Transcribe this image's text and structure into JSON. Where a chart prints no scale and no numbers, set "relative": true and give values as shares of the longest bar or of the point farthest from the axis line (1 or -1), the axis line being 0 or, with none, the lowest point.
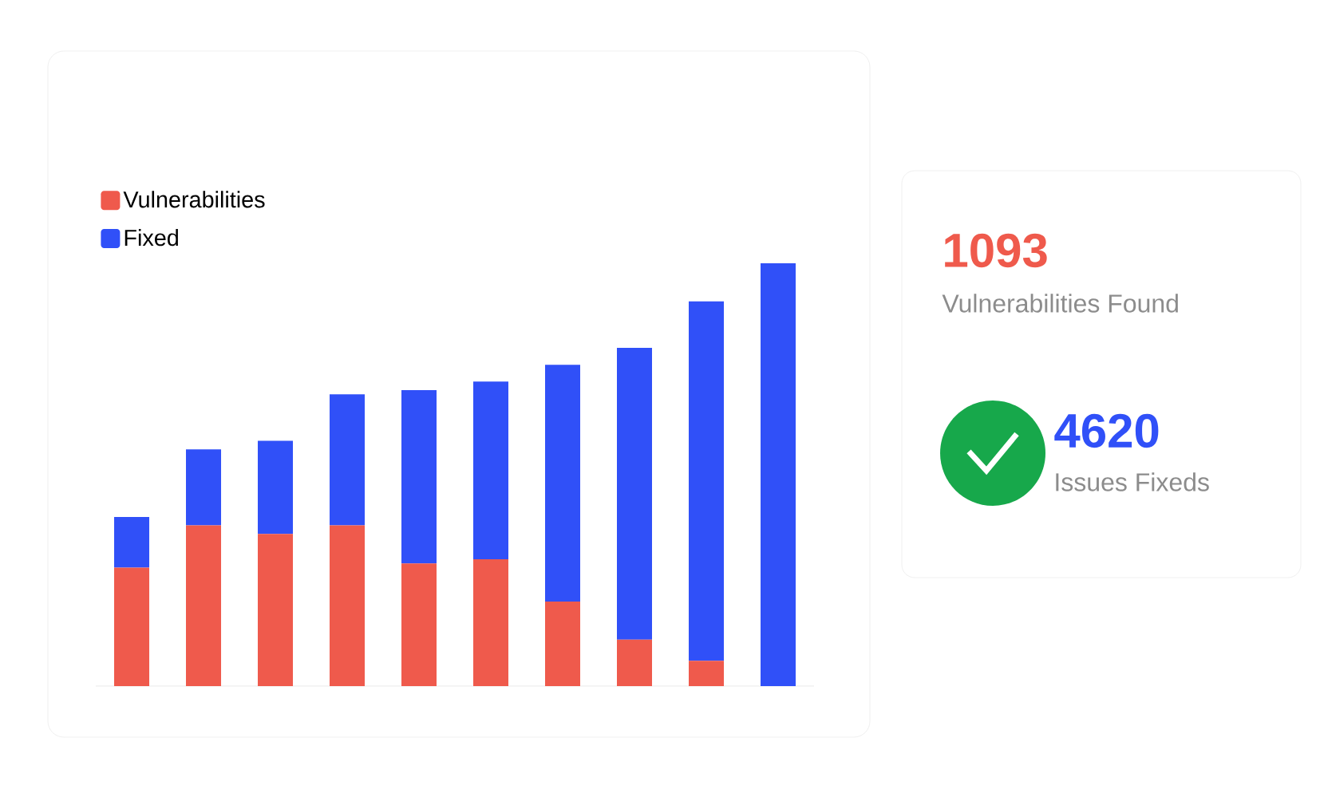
{
  "chart_data": {
    "type": "bar",
    "stacked": true,
    "relative": true,
    "legend": "top left",
    "categories": [
      null,
      null,
      null,
      null,
      null,
      null,
      null,
      null,
      null,
      null
    ],
    "series": [
      {
        "name": "Vulnerabilities",
        "color": "#ef5a4c",
        "values": [
          0.28,
          0.38,
          0.36,
          0.38,
          0.29,
          0.3,
          0.2,
          0.11,
          0.06,
          null
        ]
      },
      {
        "name": "Fixed",
        "color": "#3050f8",
        "values": [
          0.12,
          0.18,
          0.22,
          0.31,
          0.41,
          0.42,
          0.56,
          0.69,
          0.85,
          1.0
        ]
      }
    ],
    "annotations": [
      "1093",
      "Vulnerabilities Found",
      "4620",
      "Issues Fixeds"
    ]
  }
}
